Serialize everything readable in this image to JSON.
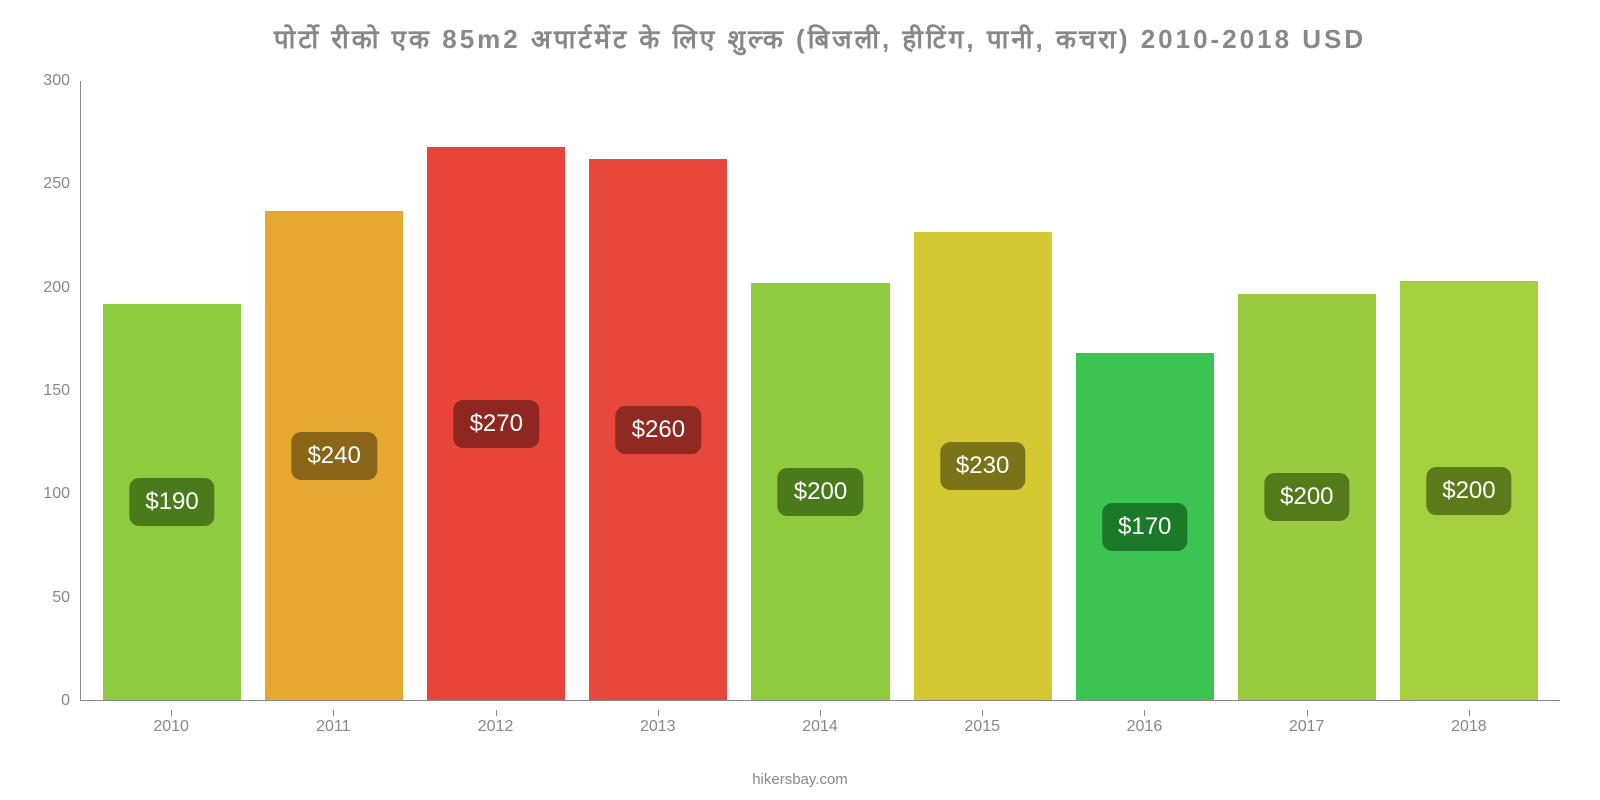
{
  "chart": {
    "type": "bar",
    "title": "पोर्टो रीको एक 85m2 अपार्टमेंट के लिए शुल्क (बिजली, हीटिंग, पानी, कचरा) 2010-2018 USD",
    "title_color": "#888888",
    "title_fontsize": 26,
    "background_color": "#ffffff",
    "ylim": [
      0,
      300
    ],
    "yticks": [
      0,
      50,
      100,
      150,
      200,
      250,
      300
    ],
    "ytick_color": "#888888",
    "ytick_fontsize": 16,
    "axis_color": "#888888",
    "categories": [
      "2010",
      "2011",
      "2012",
      "2013",
      "2014",
      "2015",
      "2016",
      "2017",
      "2018"
    ],
    "xtick_color": "#888888",
    "xtick_fontsize": 16,
    "bars": [
      {
        "year": "2010",
        "value": 192,
        "label": "$190",
        "bar_color": "#8ecb3f",
        "label_bg": "#4a7a1a"
      },
      {
        "year": "2011",
        "value": 237,
        "label": "$240",
        "bar_color": "#e5a830",
        "label_bg": "#8a6518"
      },
      {
        "year": "2012",
        "value": 268,
        "label": "$270",
        "bar_color": "#e8443a",
        "label_bg": "#8f2720"
      },
      {
        "year": "2013",
        "value": 262,
        "label": "$260",
        "bar_color": "#e8483c",
        "label_bg": "#8f2a22"
      },
      {
        "year": "2014",
        "value": 202,
        "label": "$200",
        "bar_color": "#8ecb3f",
        "label_bg": "#4a7a1a"
      },
      {
        "year": "2015",
        "value": 227,
        "label": "$230",
        "bar_color": "#d4c833",
        "label_bg": "#7a7318"
      },
      {
        "year": "2016",
        "value": 168,
        "label": "$170",
        "bar_color": "#3cc453",
        "label_bg": "#1a7a28"
      },
      {
        "year": "2017",
        "value": 197,
        "label": "$200",
        "bar_color": "#9acb3f",
        "label_bg": "#547a1a"
      },
      {
        "year": "2018",
        "value": 203,
        "label": "$200",
        "bar_color": "#a5cf3f",
        "label_bg": "#5c7a1a"
      }
    ],
    "bar_label_color": "#ffffff",
    "bar_label_fontsize": 24,
    "source": "hikersbay.com",
    "source_color": "#888888",
    "source_fontsize": 15
  }
}
